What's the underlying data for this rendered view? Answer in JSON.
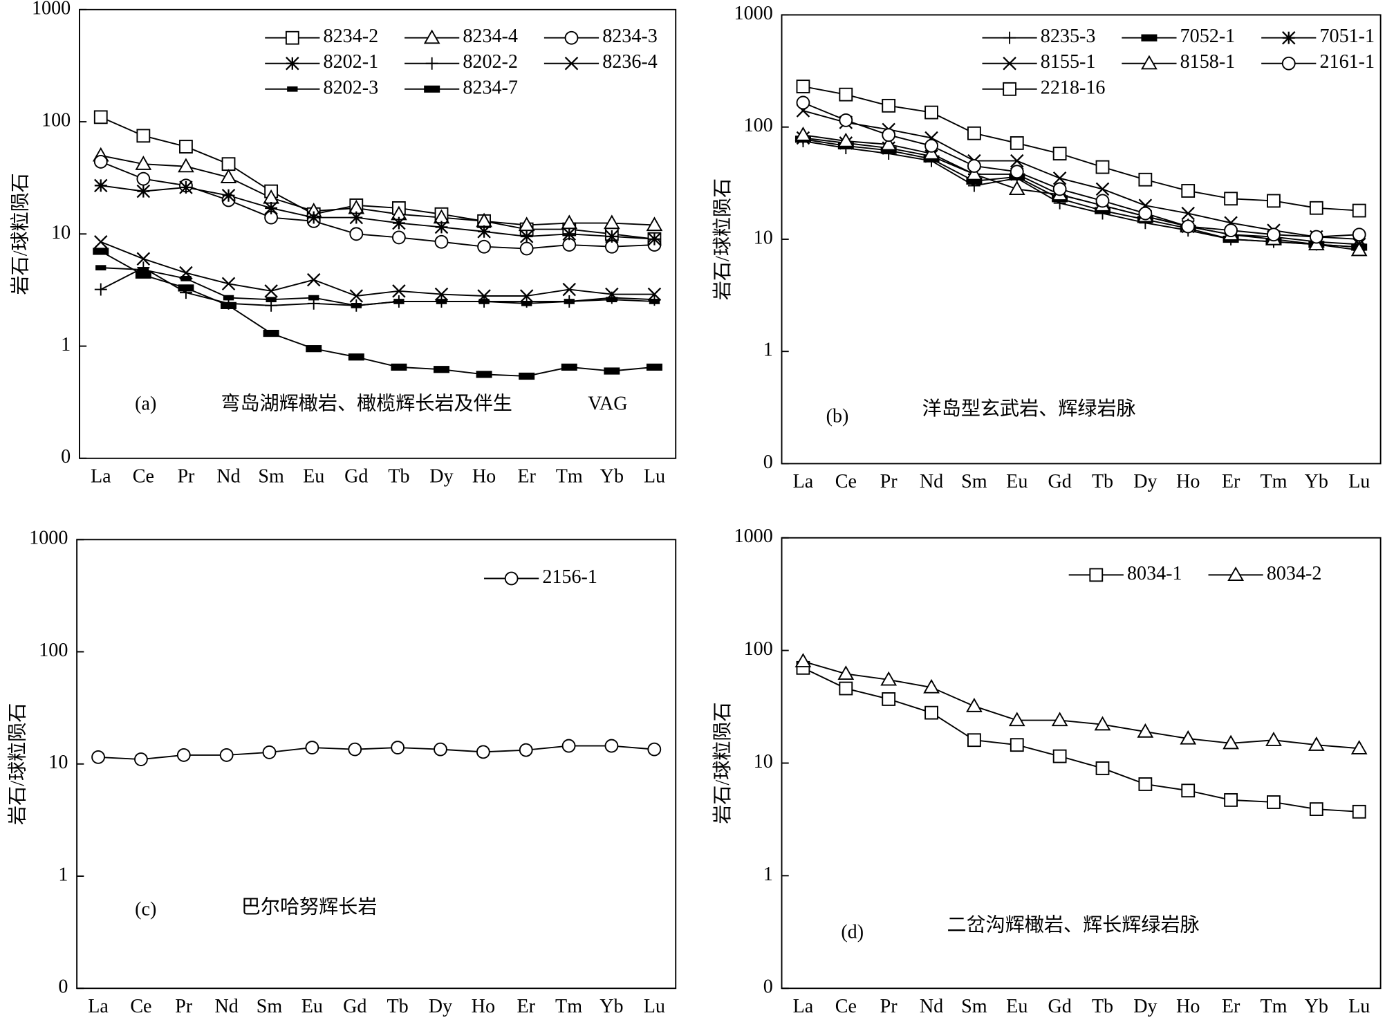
{
  "chart_data": [
    {
      "type": "line",
      "log_y": true,
      "legend": "upper right",
      "y_label": "岩石/球粒陨石",
      "annotations": [
        "(a)",
        "弯岛湖辉橄岩、橄榄辉长岩及伴生",
        "VAG"
      ],
      "categories": [
        "La",
        "Ce",
        "Pr",
        "Nd",
        "Sm",
        "Eu",
        "Gd",
        "Tb",
        "Dy",
        "Ho",
        "Er",
        "Tm",
        "Yb",
        "Lu"
      ],
      "ylim": [
        0.1,
        1000
      ],
      "yticks": [
        {
          "value": 0.1,
          "label": "0"
        },
        1,
        10,
        100,
        1000
      ],
      "series": [
        {
          "name": "8234-2",
          "marker": "square",
          "color": "#000000",
          "values": [
            110,
            75,
            60,
            42,
            24,
            15,
            18,
            17,
            15,
            13,
            11,
            11,
            10,
            9
          ]
        },
        {
          "name": "8234-4",
          "marker": "triangle",
          "color": "#000000",
          "values": [
            50,
            42,
            40,
            32,
            21,
            16,
            17,
            15,
            14,
            13,
            12,
            12.5,
            12.5,
            12
          ]
        },
        {
          "name": "8234-3",
          "marker": "circle",
          "color": "#000000",
          "values": [
            44,
            31,
            27,
            20,
            14,
            13,
            10,
            9.3,
            8.5,
            7.7,
            7.4,
            8,
            7.7,
            8
          ]
        },
        {
          "name": "8202-1",
          "marker": "asterisk",
          "color": "#000000",
          "values": [
            27,
            24,
            26,
            22,
            17,
            14,
            14,
            12.5,
            11.5,
            10.5,
            9.5,
            10,
            9.5,
            9
          ]
        },
        {
          "name": "8202-2",
          "marker": "plus",
          "color": "#000000",
          "values": [
            3.2,
            5,
            3,
            2.4,
            2.3,
            2.4,
            2.3,
            2.5,
            2.5,
            2.5,
            2.5,
            2.5,
            2.7,
            2.6
          ]
        },
        {
          "name": "8236-4",
          "marker": "cross",
          "color": "#000000",
          "values": [
            8.5,
            6,
            4.5,
            3.6,
            3.1,
            3.9,
            2.8,
            3.1,
            2.9,
            2.8,
            2.8,
            3.2,
            2.9,
            2.9
          ]
        },
        {
          "name": "8202-3",
          "marker": "smallbar",
          "color": "#000000",
          "values": [
            5,
            4.8,
            4,
            2.7,
            2.6,
            2.7,
            2.3,
            2.5,
            2.5,
            2.5,
            2.4,
            2.5,
            2.6,
            2.5
          ]
        },
        {
          "name": "8234-7",
          "marker": "bigbar",
          "color": "#000000",
          "values": [
            7,
            4.3,
            3.3,
            2.3,
            1.3,
            0.95,
            0.8,
            0.65,
            0.62,
            0.56,
            0.54,
            0.65,
            0.6,
            0.65
          ]
        }
      ]
    },
    {
      "type": "line",
      "log_y": true,
      "legend": "upper right",
      "y_label": "岩石/球粒陨石",
      "annotations": [
        "(b)",
        "洋岛型玄武岩、辉绿岩脉"
      ],
      "categories": [
        "La",
        "Ce",
        "Pr",
        "Nd",
        "Sm",
        "Eu",
        "Gd",
        "Tb",
        "Dy",
        "Ho",
        "Er",
        "Tm",
        "Yb",
        "Lu"
      ],
      "ylim": [
        0.1,
        1000
      ],
      "yticks": [
        {
          "value": 0.1,
          "label": "0"
        },
        1,
        10,
        100,
        1000
      ],
      "series": [
        {
          "name": "8235-3",
          "marker": "plus",
          "color": "#000000",
          "values": [
            75,
            65,
            58,
            50,
            30,
            35,
            21,
            17,
            14,
            12,
            10,
            9.5,
            9,
            8.5
          ]
        },
        {
          "name": "7052-1",
          "marker": "bigbar",
          "color": "#000000",
          "values": [
            78,
            68,
            62,
            52,
            33,
            36,
            23,
            18,
            15,
            12.5,
            10,
            9.5,
            9,
            8.5
          ]
        },
        {
          "name": "7051-1",
          "marker": "asterisk",
          "color": "#000000",
          "values": [
            80,
            72,
            65,
            55,
            38,
            38,
            25,
            20,
            16,
            13,
            11,
            10.5,
            9.5,
            9
          ]
        },
        {
          "name": "8155-1",
          "marker": "cross",
          "color": "#000000",
          "values": [
            140,
            110,
            95,
            80,
            50,
            50,
            35,
            28,
            20,
            17,
            14,
            12,
            10.5,
            10
          ]
        },
        {
          "name": "8158-1",
          "marker": "triangle",
          "color": "#000000",
          "values": [
            85,
            75,
            70,
            58,
            38,
            28,
            25,
            20,
            16,
            13,
            11,
            10,
            9,
            8
          ]
        },
        {
          "name": "2161-1",
          "marker": "circle",
          "color": "#000000",
          "values": [
            165,
            115,
            85,
            68,
            45,
            40,
            28,
            22,
            17,
            13,
            12,
            11,
            10.5,
            11
          ]
        },
        {
          "name": "2218-16",
          "marker": "square",
          "color": "#000000",
          "values": [
            230,
            195,
            155,
            135,
            88,
            72,
            58,
            44,
            34,
            27,
            23,
            22,
            19,
            18
          ]
        }
      ]
    },
    {
      "type": "line",
      "log_y": true,
      "legend": "upper right",
      "y_label": "岩石/球粒陨石",
      "annotations": [
        "(c)",
        "巴尔哈努辉长岩"
      ],
      "categories": [
        "La",
        "Ce",
        "Pr",
        "Nd",
        "Sm",
        "Eu",
        "Gd",
        "Tb",
        "Dy",
        "Ho",
        "Er",
        "Tm",
        "Yb",
        "Lu"
      ],
      "ylim": [
        0.1,
        1000
      ],
      "yticks": [
        {
          "value": 0.1,
          "label": "0"
        },
        1,
        10,
        100,
        1000
      ],
      "series": [
        {
          "name": "2156-1",
          "marker": "circle",
          "color": "#000000",
          "values": [
            11.5,
            11,
            12,
            12,
            12.7,
            14,
            13.5,
            14,
            13.5,
            12.8,
            13.3,
            14.5,
            14.5,
            13.5
          ]
        }
      ]
    },
    {
      "type": "line",
      "log_y": true,
      "legend": "upper right",
      "y_label": "岩石/球粒陨石",
      "annotations": [
        "(d)",
        "二岔沟辉橄岩、辉长辉绿岩脉"
      ],
      "categories": [
        "La",
        "Ce",
        "Pr",
        "Nd",
        "Sm",
        "Eu",
        "Gd",
        "Tb",
        "Dy",
        "Ho",
        "Er",
        "Tm",
        "Yb",
        "Lu"
      ],
      "ylim": [
        0.1,
        1000
      ],
      "yticks": [
        {
          "value": 0.1,
          "label": "0"
        },
        1,
        10,
        100,
        1000
      ],
      "series": [
        {
          "name": "8034-1",
          "marker": "square",
          "color": "#000000",
          "values": [
            70,
            46,
            37,
            28,
            16,
            14.5,
            11.5,
            9,
            6.5,
            5.7,
            4.7,
            4.5,
            3.9,
            3.7
          ]
        },
        {
          "name": "8034-2",
          "marker": "triangle",
          "color": "#000000",
          "values": [
            80,
            62,
            55,
            47,
            32,
            24,
            24,
            22,
            19,
            16.5,
            15,
            16,
            14.5,
            13.5
          ]
        }
      ]
    }
  ]
}
